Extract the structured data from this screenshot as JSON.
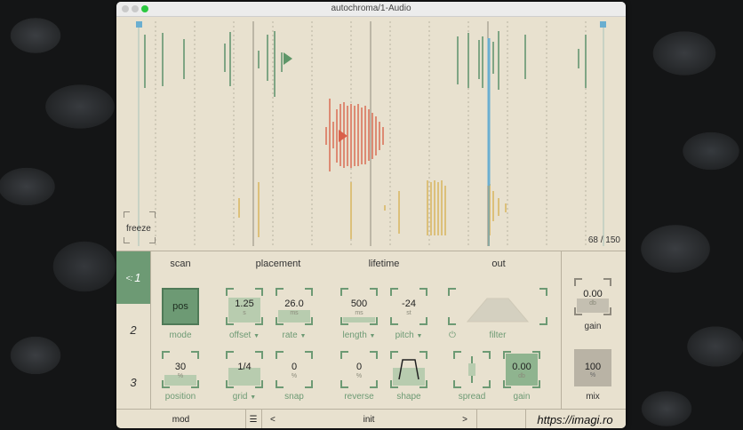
{
  "window": {
    "title": "autochroma/1-Audio"
  },
  "display": {
    "freeze_label": "freeze",
    "counter": "68 / 150"
  },
  "tabs": [
    {
      "label": "1",
      "active": true
    },
    {
      "label": "2",
      "active": false
    },
    {
      "label": "3",
      "active": false
    }
  ],
  "sections": {
    "scan": "scan",
    "placement": "placement",
    "lifetime": "lifetime",
    "out": "out"
  },
  "controls": {
    "mode": {
      "value": "pos",
      "caption": "mode"
    },
    "position": {
      "value": "30",
      "unit": "%",
      "caption": "position"
    },
    "offset": {
      "value": "1.25",
      "unit": "s",
      "caption": "offset"
    },
    "rate": {
      "value": "26.0",
      "unit": "ms",
      "caption": "rate"
    },
    "grid": {
      "value": "1/4",
      "caption": "grid"
    },
    "snap": {
      "value": "0",
      "unit": "%",
      "caption": "snap"
    },
    "length": {
      "value": "500",
      "unit": "ms",
      "caption": "length"
    },
    "pitch": {
      "value": "-24",
      "unit": "st",
      "caption": "pitch"
    },
    "reverse": {
      "value": "0",
      "unit": "%",
      "caption": "reverse"
    },
    "shape": {
      "caption": "shape"
    },
    "filter": {
      "caption": "filter"
    },
    "spread": {
      "caption": "spread"
    },
    "out_gain": {
      "value": "0.00",
      "unit": "db",
      "caption": "gain"
    },
    "side_gain": {
      "value": "0.00",
      "unit": "db",
      "caption": "gain"
    },
    "mix": {
      "value": "100",
      "unit": "%",
      "caption": "mix"
    }
  },
  "footer": {
    "mod": "mod",
    "menu_icon": "hamburger-icon",
    "prev": "<",
    "preset": "init",
    "next": ">",
    "url": "https://imagi.ro"
  },
  "colors": {
    "accent": "#6d9a74",
    "grain_red": "#d9604a",
    "grain_yellow": "#d8b04a",
    "playhead_blue": "#5aa9d6"
  }
}
